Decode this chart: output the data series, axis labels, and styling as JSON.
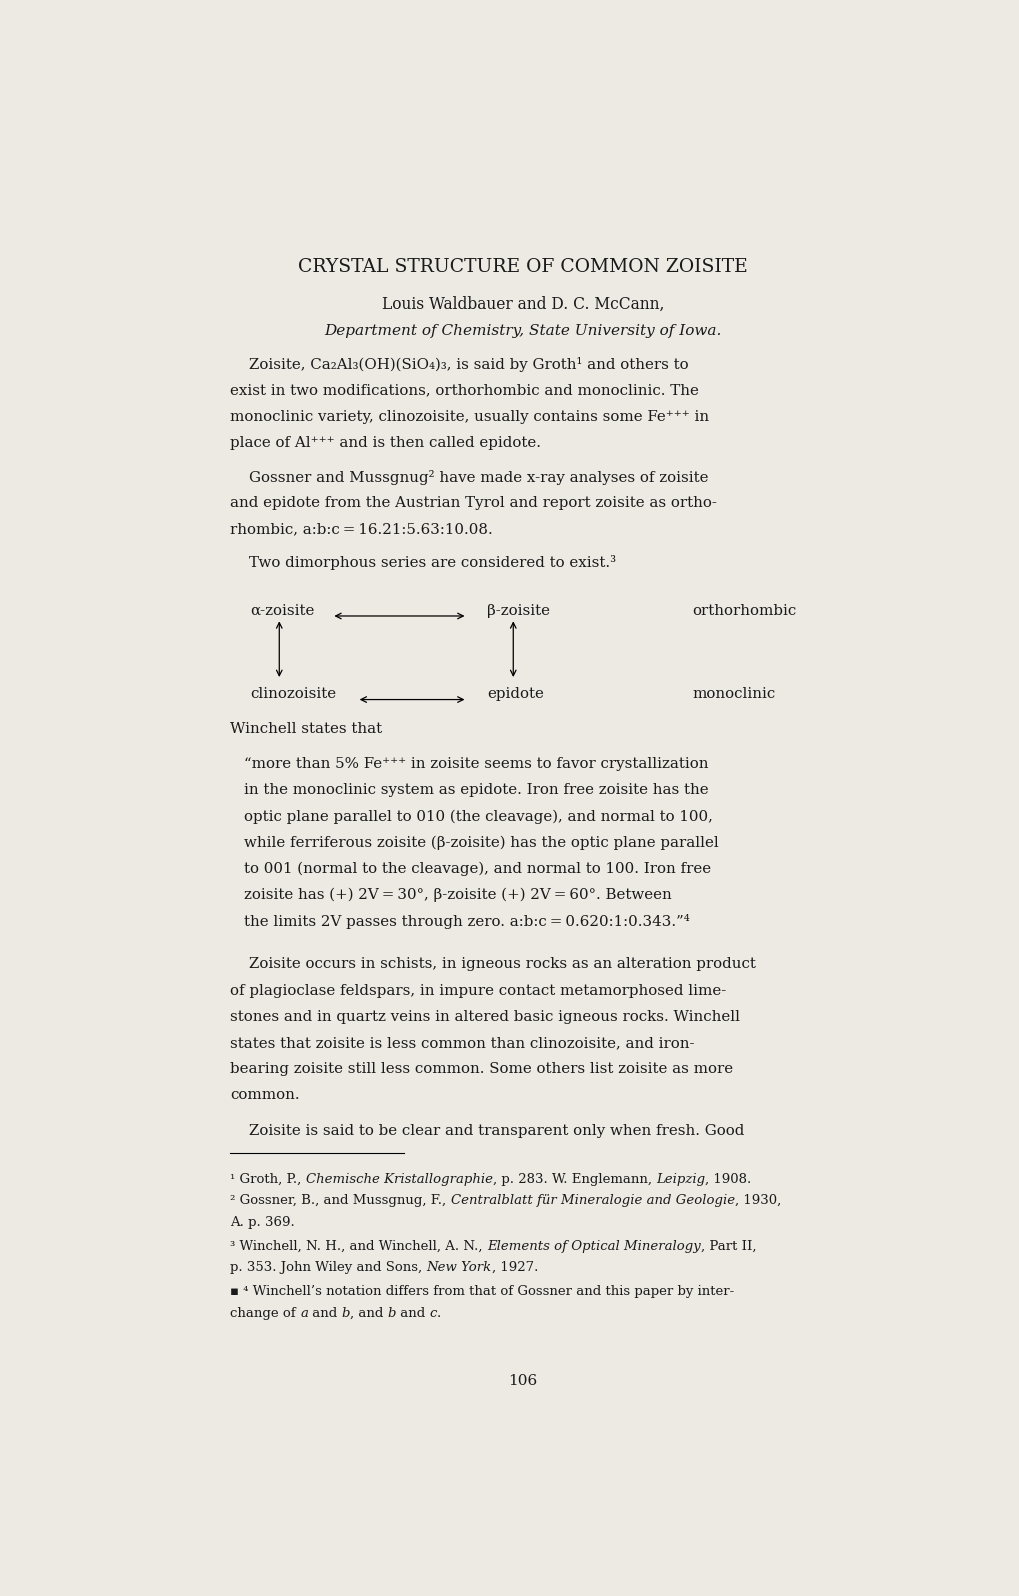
{
  "bg_color": "#edeae4",
  "text_color": "#1a1a1a",
  "page_width": 10.2,
  "page_height": 15.96,
  "title": "CRYSTAL STRUCTURE OF COMMON ZOISITE",
  "authors": "Louis Waldbauer and D. C. McCann,",
  "affiliation": "Department of Chemistry, State University of Iowa.",
  "page_num": "106"
}
